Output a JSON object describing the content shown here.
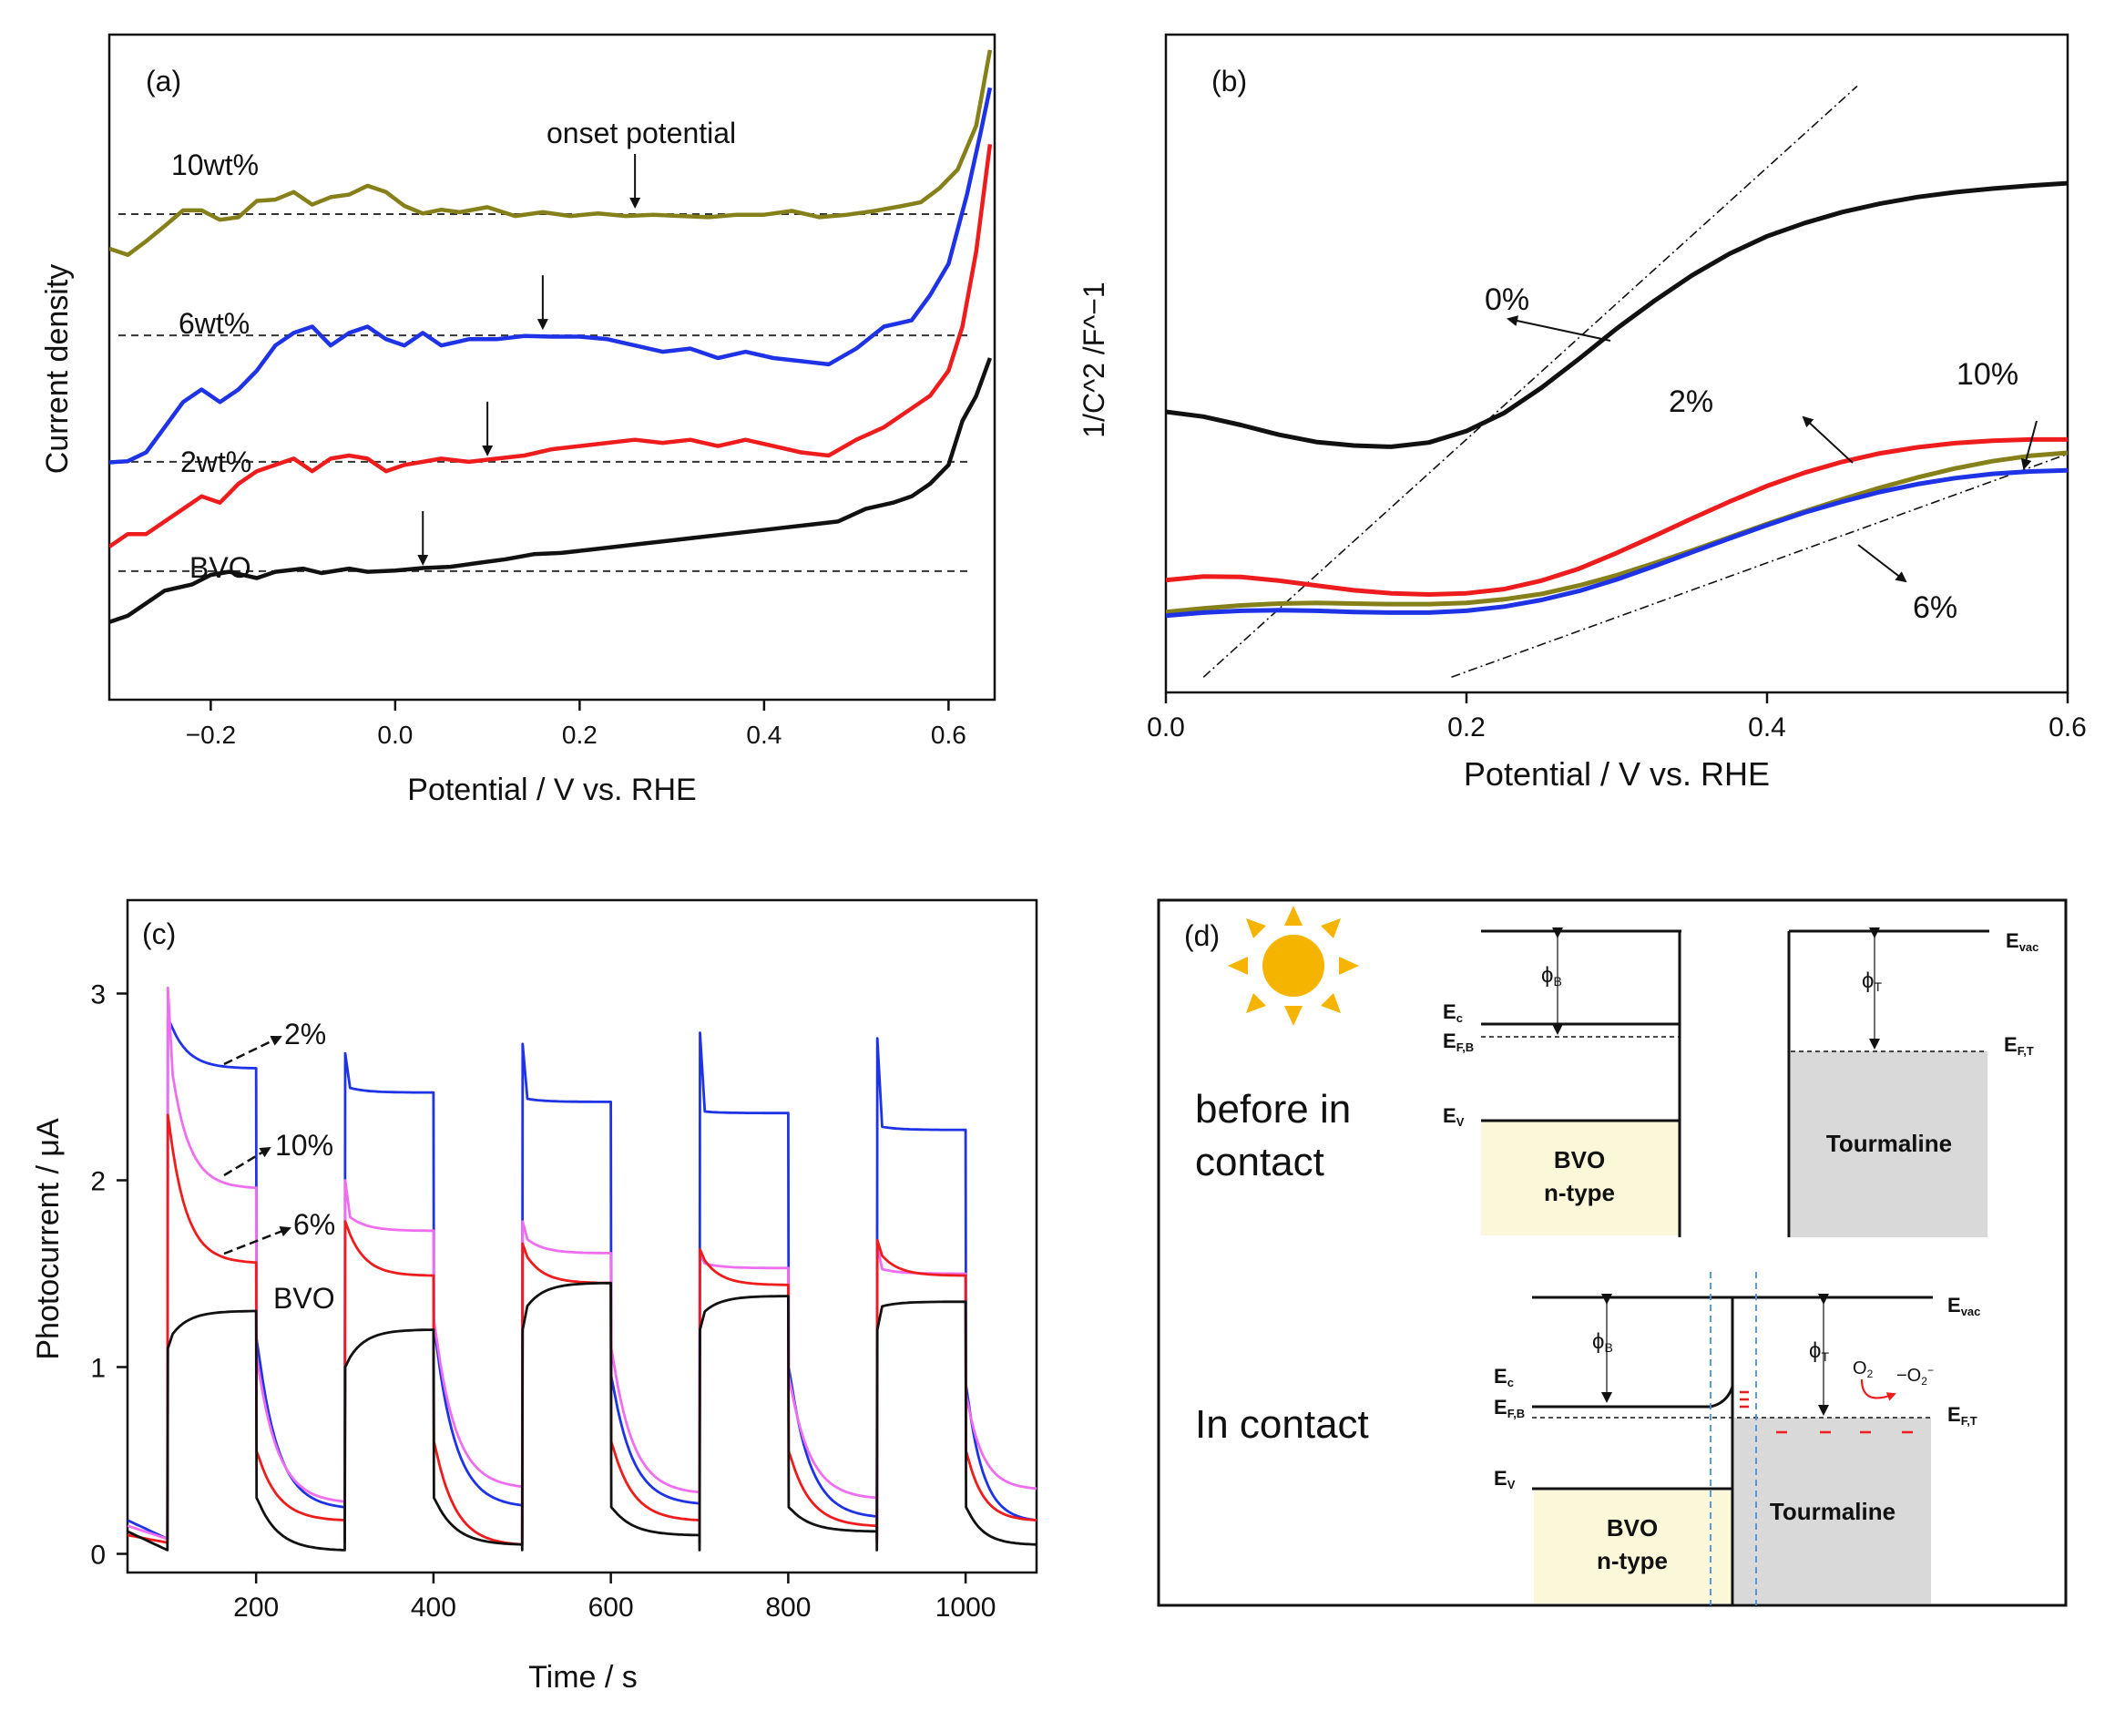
{
  "colors": {
    "black": "#111111",
    "blue": "#1f33e6",
    "red": "#ee1c1c",
    "olive": "#85801a",
    "pink": "#ef6ef0",
    "sun": "#f5b400",
    "bvo_fill": "#fbf8d9",
    "tourmaline_fill": "#d9d9d9",
    "interface_dash": "#4a90d9"
  },
  "chart_data": [
    {
      "id": "a",
      "type": "line",
      "panel_label": "(a)",
      "xlabel": "Potential / V vs. RHE",
      "ylabel": "Current density",
      "xlim": [
        -0.31,
        0.65
      ],
      "ylim": [
        0,
        1
      ],
      "xticks": [
        -0.2,
        0.0,
        0.2,
        0.4,
        0.6
      ],
      "xtick_labels": [
        "−0.2",
        "0.0",
        "0.2",
        "0.4",
        "0.6"
      ],
      "yticks": [],
      "annotations": [
        "onset potential"
      ],
      "series": [
        {
          "name": "10wt%",
          "color": "olive",
          "baseline": 0.729,
          "onset": 0.26,
          "x": [
            -0.31,
            -0.29,
            -0.27,
            -0.25,
            -0.23,
            -0.21,
            -0.19,
            -0.17,
            -0.15,
            -0.13,
            -0.11,
            -0.09,
            -0.07,
            -0.05,
            -0.03,
            -0.01,
            0.01,
            0.03,
            0.05,
            0.07,
            0.1,
            0.13,
            0.16,
            0.19,
            0.22,
            0.25,
            0.28,
            0.31,
            0.34,
            0.37,
            0.4,
            0.43,
            0.46,
            0.49,
            0.52,
            0.55,
            0.57,
            0.59,
            0.61,
            0.63,
            0.645
          ],
          "y": [
            0.674,
            0.664,
            0.686,
            0.71,
            0.735,
            0.735,
            0.72,
            0.724,
            0.75,
            0.752,
            0.764,
            0.744,
            0.756,
            0.76,
            0.774,
            0.764,
            0.742,
            0.73,
            0.736,
            0.732,
            0.74,
            0.726,
            0.732,
            0.726,
            0.73,
            0.726,
            0.728,
            0.726,
            0.724,
            0.728,
            0.728,
            0.734,
            0.724,
            0.728,
            0.734,
            0.742,
            0.748,
            0.77,
            0.8,
            0.87,
            0.99
          ]
        },
        {
          "name": "6wt%",
          "color": "blue",
          "baseline": 0.536,
          "onset": 0.16,
          "x": [
            -0.31,
            -0.29,
            -0.27,
            -0.25,
            -0.23,
            -0.21,
            -0.19,
            -0.17,
            -0.15,
            -0.13,
            -0.11,
            -0.09,
            -0.07,
            -0.05,
            -0.03,
            -0.01,
            0.01,
            0.03,
            0.05,
            0.08,
            0.11,
            0.14,
            0.17,
            0.2,
            0.23,
            0.26,
            0.29,
            0.32,
            0.35,
            0.38,
            0.41,
            0.44,
            0.47,
            0.5,
            0.53,
            0.56,
            0.58,
            0.6,
            0.62,
            0.635,
            0.645
          ],
          "y": [
            0.334,
            0.336,
            0.35,
            0.39,
            0.43,
            0.45,
            0.43,
            0.45,
            0.48,
            0.52,
            0.54,
            0.55,
            0.52,
            0.54,
            0.55,
            0.53,
            0.52,
            0.54,
            0.52,
            0.53,
            0.53,
            0.535,
            0.534,
            0.534,
            0.53,
            0.52,
            0.51,
            0.515,
            0.5,
            0.51,
            0.5,
            0.495,
            0.49,
            0.515,
            0.55,
            0.56,
            0.6,
            0.65,
            0.76,
            0.86,
            0.93
          ]
        },
        {
          "name": "2wt%",
          "color": "red",
          "baseline": 0.335,
          "onset": 0.1,
          "x": [
            -0.31,
            -0.29,
            -0.27,
            -0.25,
            -0.23,
            -0.21,
            -0.19,
            -0.17,
            -0.15,
            -0.13,
            -0.11,
            -0.09,
            -0.07,
            -0.05,
            -0.03,
            -0.01,
            0.01,
            0.03,
            0.05,
            0.08,
            0.11,
            0.14,
            0.17,
            0.2,
            0.23,
            0.26,
            0.29,
            0.32,
            0.35,
            0.38,
            0.41,
            0.44,
            0.47,
            0.5,
            0.53,
            0.56,
            0.58,
            0.6,
            0.615,
            0.63,
            0.645
          ],
          "y": [
            0.2,
            0.22,
            0.22,
            0.24,
            0.26,
            0.28,
            0.27,
            0.3,
            0.32,
            0.33,
            0.34,
            0.32,
            0.34,
            0.345,
            0.34,
            0.32,
            0.33,
            0.335,
            0.34,
            0.335,
            0.34,
            0.345,
            0.355,
            0.36,
            0.365,
            0.37,
            0.365,
            0.37,
            0.36,
            0.37,
            0.36,
            0.35,
            0.345,
            0.37,
            0.39,
            0.42,
            0.44,
            0.48,
            0.55,
            0.67,
            0.84
          ]
        },
        {
          "name": "BVO",
          "color": "black",
          "baseline": 0.161,
          "onset": 0.03,
          "x": [
            -0.31,
            -0.29,
            -0.27,
            -0.25,
            -0.22,
            -0.2,
            -0.18,
            -0.15,
            -0.13,
            -0.1,
            -0.08,
            -0.05,
            -0.03,
            0.0,
            0.03,
            0.06,
            0.09,
            0.12,
            0.15,
            0.18,
            0.21,
            0.24,
            0.27,
            0.3,
            0.33,
            0.36,
            0.39,
            0.42,
            0.45,
            0.48,
            0.51,
            0.54,
            0.56,
            0.58,
            0.6,
            0.615,
            0.63,
            0.645
          ],
          "y": [
            0.08,
            0.09,
            0.11,
            0.13,
            0.14,
            0.155,
            0.16,
            0.15,
            0.16,
            0.165,
            0.158,
            0.165,
            0.16,
            0.162,
            0.166,
            0.168,
            0.174,
            0.18,
            0.188,
            0.19,
            0.195,
            0.2,
            0.205,
            0.21,
            0.215,
            0.22,
            0.225,
            0.23,
            0.235,
            0.24,
            0.26,
            0.27,
            0.28,
            0.3,
            0.33,
            0.4,
            0.44,
            0.5
          ]
        }
      ]
    },
    {
      "id": "b",
      "type": "line",
      "panel_label": "(b)",
      "xlabel": "Potential / V vs. RHE",
      "ylabel": "1/C^2 /F^−1",
      "xlim": [
        0.0,
        0.6
      ],
      "ylim": [
        0,
        1
      ],
      "xticks": [
        0.0,
        0.2,
        0.4,
        0.6
      ],
      "xtick_labels": [
        "0.0",
        "0.2",
        "0.4",
        "0.6"
      ],
      "series": [
        {
          "name": "0%",
          "color": "black",
          "x": [
            0,
            0.025,
            0.05,
            0.075,
            0.1,
            0.125,
            0.15,
            0.175,
            0.2,
            0.225,
            0.25,
            0.275,
            0.3,
            0.325,
            0.35,
            0.375,
            0.4,
            0.425,
            0.45,
            0.475,
            0.5,
            0.525,
            0.55,
            0.575,
            0.6
          ],
          "y": [
            0.42,
            0.412,
            0.398,
            0.382,
            0.37,
            0.364,
            0.362,
            0.369,
            0.388,
            0.418,
            0.46,
            0.508,
            0.558,
            0.604,
            0.646,
            0.682,
            0.711,
            0.733,
            0.751,
            0.765,
            0.776,
            0.784,
            0.79,
            0.795,
            0.799
          ]
        },
        {
          "name": "2%",
          "color": "red",
          "x": [
            0,
            0.025,
            0.05,
            0.075,
            0.1,
            0.125,
            0.15,
            0.175,
            0.2,
            0.225,
            0.25,
            0.275,
            0.3,
            0.325,
            0.35,
            0.375,
            0.4,
            0.425,
            0.45,
            0.475,
            0.5,
            0.525,
            0.55,
            0.575,
            0.6
          ],
          "y": [
            0.141,
            0.147,
            0.146,
            0.14,
            0.132,
            0.124,
            0.119,
            0.117,
            0.119,
            0.126,
            0.14,
            0.16,
            0.186,
            0.214,
            0.243,
            0.271,
            0.297,
            0.319,
            0.337,
            0.351,
            0.361,
            0.368,
            0.372,
            0.374,
            0.374
          ]
        },
        {
          "name": "10%",
          "color": "olive",
          "x": [
            0,
            0.025,
            0.05,
            0.075,
            0.1,
            0.125,
            0.15,
            0.175,
            0.2,
            0.225,
            0.25,
            0.275,
            0.3,
            0.325,
            0.35,
            0.375,
            0.4,
            0.425,
            0.45,
            0.475,
            0.5,
            0.525,
            0.55,
            0.575,
            0.6
          ],
          "y": [
            0.088,
            0.094,
            0.099,
            0.102,
            0.103,
            0.102,
            0.101,
            0.101,
            0.103,
            0.109,
            0.118,
            0.132,
            0.149,
            0.169,
            0.19,
            0.212,
            0.234,
            0.255,
            0.275,
            0.294,
            0.311,
            0.326,
            0.338,
            0.347,
            0.352
          ]
        },
        {
          "name": "6%",
          "color": "blue",
          "x": [
            0,
            0.025,
            0.05,
            0.075,
            0.1,
            0.125,
            0.15,
            0.175,
            0.2,
            0.225,
            0.25,
            0.275,
            0.3,
            0.325,
            0.35,
            0.375,
            0.4,
            0.425,
            0.45,
            0.475,
            0.5,
            0.525,
            0.55,
            0.575,
            0.6
          ],
          "y": [
            0.082,
            0.087,
            0.09,
            0.091,
            0.09,
            0.088,
            0.087,
            0.087,
            0.09,
            0.097,
            0.108,
            0.123,
            0.142,
            0.164,
            0.187,
            0.21,
            0.232,
            0.253,
            0.271,
            0.287,
            0.3,
            0.31,
            0.317,
            0.321,
            0.323
          ]
        }
      ]
    },
    {
      "id": "c",
      "type": "line",
      "panel_label": "(c)",
      "xlabel": "Time / s",
      "ylabel": "Photocurrent / μA",
      "xlim": [
        55,
        1080
      ],
      "ylim": [
        -0.1,
        3.5
      ],
      "xticks": [
        200,
        400,
        600,
        800,
        1000
      ],
      "yticks": [
        0,
        1,
        2,
        3
      ],
      "light_on_periods": [
        [
          100,
          200
        ],
        [
          300,
          400
        ],
        [
          500,
          600
        ],
        [
          700,
          800
        ],
        [
          900,
          1000
        ]
      ],
      "series": [
        {
          "name": "2%",
          "color": "blue",
          "dark_start": 0.18,
          "dark_end": 0.08,
          "spike": 2.87,
          "on": [
            {
              "spike": 2.87,
              "start": 2.86,
              "end": 2.6
            },
            {
              "spike": 2.68,
              "start": 2.5,
              "end": 2.47
            },
            {
              "spike": 2.73,
              "start": 2.44,
              "end": 2.42
            },
            {
              "spike": 2.79,
              "start": 2.37,
              "end": 2.36
            },
            {
              "spike": 2.76,
              "start": 2.29,
              "end": 2.27
            }
          ],
          "off": [
            {
              "drop": 1.15,
              "end": 0.25
            },
            {
              "drop": 1.22,
              "end": 0.26
            },
            {
              "drop": 0.95,
              "end": 0.27
            },
            {
              "drop": 1.0,
              "end": 0.2
            },
            {
              "drop": 0.9,
              "end": 0.18
            }
          ]
        },
        {
          "name": "10%",
          "color": "pink",
          "dark_start": 0.15,
          "dark_end": 0.08,
          "spike": 3.03,
          "on": [
            {
              "spike": 3.03,
              "start": 2.7,
              "end": 1.96
            },
            {
              "spike": 2.0,
              "start": 1.82,
              "end": 1.73
            },
            {
              "spike": 1.78,
              "start": 1.7,
              "end": 1.61
            },
            {
              "spike": 1.6,
              "start": 1.56,
              "end": 1.53
            },
            {
              "spike": 1.65,
              "start": 1.53,
              "end": 1.5
            }
          ],
          "off": [
            {
              "drop": 1.05,
              "end": 0.28
            },
            {
              "drop": 1.25,
              "end": 0.36
            },
            {
              "drop": 1.1,
              "end": 0.33
            },
            {
              "drop": 0.95,
              "end": 0.3
            },
            {
              "drop": 0.85,
              "end": 0.35
            }
          ]
        },
        {
          "name": "6%",
          "color": "red",
          "dark_start": 0.1,
          "dark_end": 0.06,
          "spike": 2.35,
          "on": [
            {
              "spike": 2.35,
              "start": 2.3,
              "end": 1.56
            },
            {
              "spike": 1.78,
              "start": 1.76,
              "end": 1.49
            },
            {
              "spike": 1.66,
              "start": 1.62,
              "end": 1.45
            },
            {
              "spike": 1.63,
              "start": 1.6,
              "end": 1.44
            },
            {
              "spike": 1.68,
              "start": 1.62,
              "end": 1.49
            }
          ],
          "off": [
            {
              "drop": 0.55,
              "end": 0.18
            },
            {
              "drop": 0.6,
              "end": 0.05
            },
            {
              "drop": 0.6,
              "end": 0.18
            },
            {
              "drop": 0.55,
              "end": 0.15
            },
            {
              "drop": 0.55,
              "end": 0.18
            }
          ]
        },
        {
          "name": "BVO",
          "color": "black",
          "dark_start": 0.12,
          "dark_end": 0.02,
          "spike": 1.3,
          "on": [
            {
              "spike": 1.1,
              "start": 1.15,
              "end": 1.3
            },
            {
              "spike": 1.0,
              "start": 1.02,
              "end": 1.2
            },
            {
              "spike": 1.2,
              "start": 1.3,
              "end": 1.45
            },
            {
              "spike": 1.2,
              "start": 1.28,
              "end": 1.38
            },
            {
              "spike": 1.2,
              "start": 1.32,
              "end": 1.35
            }
          ],
          "off": [
            {
              "drop": 0.3,
              "end": 0.02
            },
            {
              "drop": 0.3,
              "end": 0.05
            },
            {
              "drop": 0.25,
              "end": 0.1
            },
            {
              "drop": 0.25,
              "end": 0.12
            },
            {
              "drop": 0.25,
              "end": 0.05
            }
          ]
        }
      ],
      "curve_labels": [
        "2%",
        "10%",
        "6%",
        "BVO"
      ]
    }
  ],
  "diagram": {
    "panel_label": "(d)",
    "before_label_line1": "before in",
    "before_label_line2": "contact",
    "after_label": "In contact",
    "bvo_label_line1": "BVO",
    "bvo_label_line2": "n-type",
    "tourmaline_label": "Tourmaline",
    "e_vac": "vac",
    "e_c": "c",
    "e_fb": "F,B",
    "e_v": "V",
    "e_ft": "F,T",
    "phi_b": "B",
    "phi_t": "T",
    "o2": "O",
    "o2_sub": "2",
    "o2_minus": "−O",
    "o2_minus_sub": "2",
    "o2_minus_sup": "−",
    "E": "E",
    "phi": "ϕ"
  },
  "labels_b": {
    "l0": "0%",
    "l2": "2%",
    "l10": "10%",
    "l6": "6%"
  }
}
